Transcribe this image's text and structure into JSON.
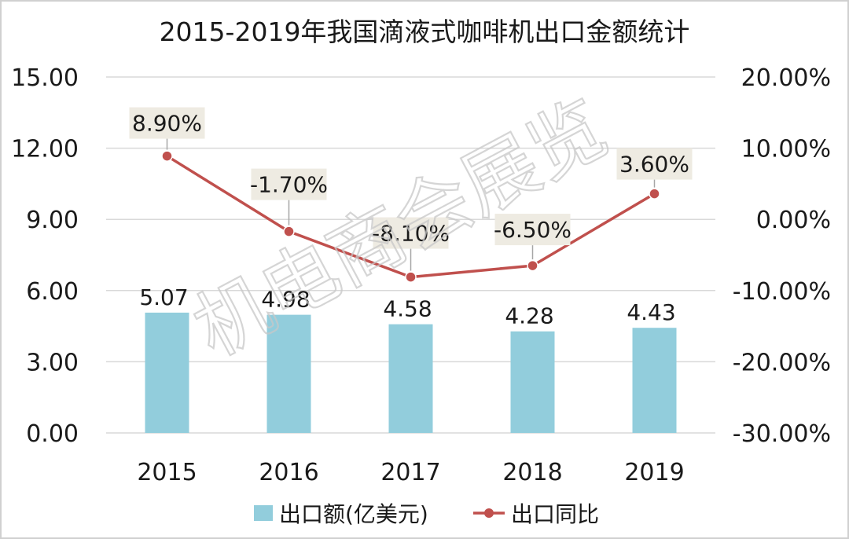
{
  "chart_data": {
    "type": "bar+line",
    "title": "2015-2019年我国滴液式咖啡机出口金额统计",
    "categories": [
      "2015",
      "2016",
      "2017",
      "2018",
      "2019"
    ],
    "series": [
      {
        "name": "出口额(亿美元)",
        "type": "bar",
        "axis": "left",
        "values": [
          5.07,
          4.98,
          4.58,
          4.28,
          4.43
        ],
        "labels": [
          "5.07",
          "4.98",
          "4.58",
          "4.28",
          "4.43"
        ],
        "color": "#92cddc"
      },
      {
        "name": "出口同比",
        "type": "line",
        "axis": "right",
        "values": [
          8.9,
          -1.7,
          -8.1,
          -6.5,
          3.6
        ],
        "labels": [
          "8.90%",
          "-1.70%",
          "-8.10%",
          "-6.50%",
          "3.60%"
        ],
        "color": "#c0504d"
      }
    ],
    "left_axis": {
      "min": 0,
      "max": 15,
      "ticks": [
        "0.00",
        "3.00",
        "6.00",
        "9.00",
        "12.00",
        "15.00"
      ]
    },
    "right_axis": {
      "min": -30,
      "max": 20,
      "ticks": [
        "-30.00%",
        "-20.00%",
        "-10.00%",
        "0.00%",
        "10.00%",
        "20.00%"
      ]
    },
    "grid": true,
    "legend_position": "bottom"
  },
  "watermark": "机电商会展览"
}
